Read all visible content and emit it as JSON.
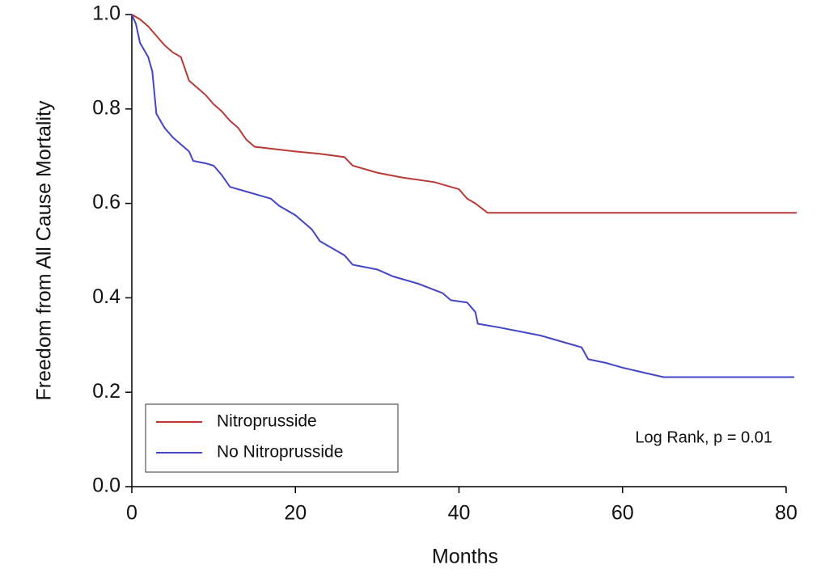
{
  "chart_data": {
    "type": "line",
    "x_label": "Months",
    "y_label": "Freedom from All Cause Mortality",
    "annotation": "Log Rank, p = 0.01",
    "xlim": [
      0,
      80
    ],
    "xticks": [
      0,
      20,
      40,
      60,
      80
    ],
    "ylim": [
      0,
      1
    ],
    "yticks": [
      {
        "value": 0,
        "label": "0.0"
      },
      0.2,
      0.4,
      0.6,
      0.8,
      {
        "value": 1,
        "label": "1.0"
      }
    ],
    "legend": "lower-left",
    "series": [
      {
        "name": "Nitroprusside",
        "color": "#b83a36",
        "x": [
          0,
          1,
          2,
          3,
          4,
          5,
          6,
          7,
          8,
          9,
          10,
          11,
          12,
          13,
          14,
          15,
          17,
          20,
          23,
          26,
          27,
          30,
          33,
          37,
          40,
          41,
          42,
          43.5,
          81.3
        ],
        "values": [
          1.0,
          0.99,
          0.975,
          0.955,
          0.935,
          0.92,
          0.91,
          0.86,
          0.845,
          0.83,
          0.81,
          0.795,
          0.775,
          0.76,
          0.735,
          0.72,
          0.716,
          0.71,
          0.705,
          0.698,
          0.68,
          0.665,
          0.655,
          0.645,
          0.63,
          0.61,
          0.6,
          0.58,
          0.58
        ]
      },
      {
        "name": "No Nitroprusside",
        "color": "#4444c4",
        "x": [
          0,
          0.5,
          1,
          2,
          2.5,
          3,
          4,
          5,
          6,
          7,
          7.5,
          9,
          10,
          11,
          12,
          14,
          16,
          17,
          18,
          20,
          22,
          23,
          25,
          26,
          27,
          30,
          32,
          35,
          38,
          39,
          41,
          42,
          42.3,
          45,
          50,
          53,
          55,
          55.8,
          58,
          60,
          63,
          65,
          81
        ],
        "values": [
          1.0,
          0.98,
          0.94,
          0.91,
          0.88,
          0.79,
          0.76,
          0.74,
          0.725,
          0.71,
          0.69,
          0.685,
          0.68,
          0.66,
          0.635,
          0.625,
          0.615,
          0.61,
          0.595,
          0.575,
          0.545,
          0.52,
          0.5,
          0.49,
          0.47,
          0.46,
          0.445,
          0.43,
          0.41,
          0.395,
          0.39,
          0.37,
          0.345,
          0.337,
          0.32,
          0.305,
          0.295,
          0.27,
          0.262,
          0.252,
          0.24,
          0.232,
          0.232
        ]
      }
    ]
  }
}
